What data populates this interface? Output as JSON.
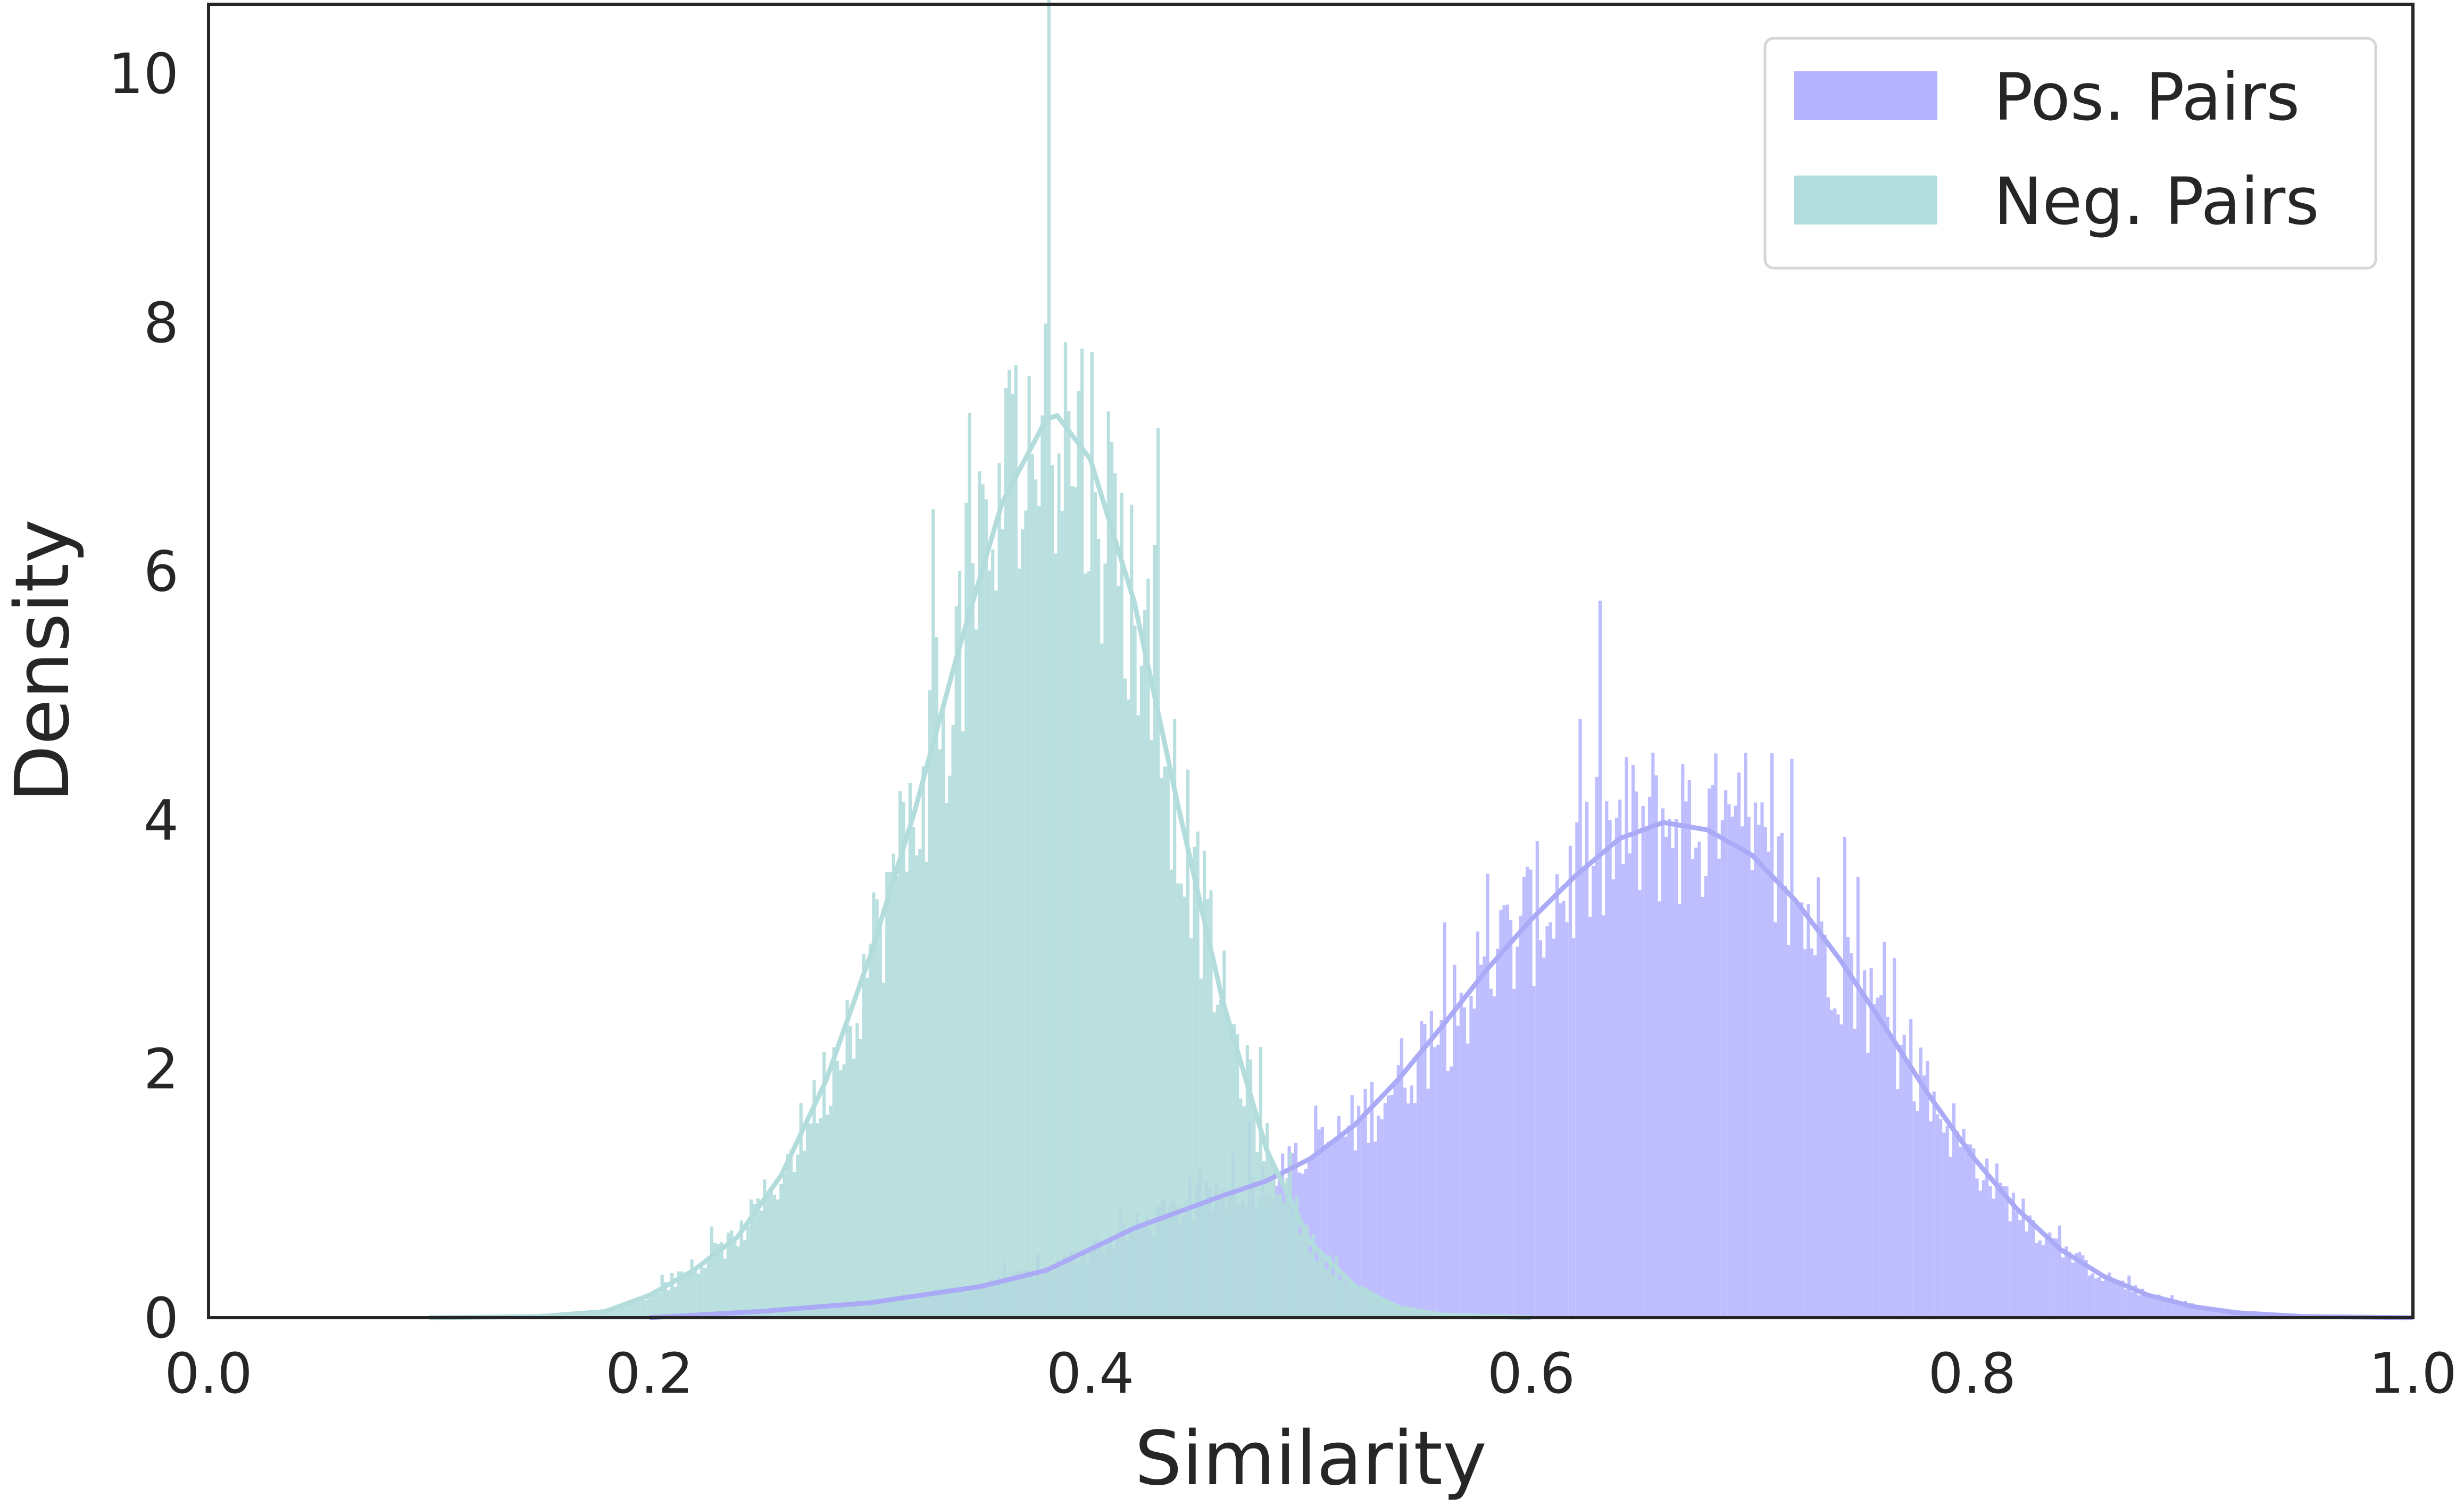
{
  "chart_data": {
    "type": "histogram",
    "title": "",
    "xlabel": "Similarity",
    "ylabel": "Density",
    "xlim": [
      0.0,
      1.0
    ],
    "ylim": [
      0,
      10.5
    ],
    "xticks": [
      "0.0",
      "0.2",
      "0.4",
      "0.6",
      "0.8",
      "1.0"
    ],
    "yticks": [
      "0",
      "2",
      "4",
      "6",
      "8",
      "10"
    ],
    "grid": false,
    "legend_position": "top-right",
    "kde": true,
    "series": [
      {
        "name": "Pos. Pairs",
        "color": "#b3b3ff",
        "line_color": "#aaaaf6",
        "kde_x": [
          0.2,
          0.25,
          0.3,
          0.35,
          0.38,
          0.4,
          0.42,
          0.44,
          0.46,
          0.48,
          0.5,
          0.52,
          0.54,
          0.56,
          0.58,
          0.6,
          0.62,
          0.64,
          0.66,
          0.68,
          0.7,
          0.72,
          0.74,
          0.76,
          0.78,
          0.8,
          0.82,
          0.84,
          0.86,
          0.88,
          0.9,
          0.92,
          0.95,
          1.0
        ],
        "kde_y": [
          0.0,
          0.05,
          0.12,
          0.25,
          0.38,
          0.55,
          0.72,
          0.85,
          0.98,
          1.1,
          1.28,
          1.55,
          1.92,
          2.35,
          2.8,
          3.2,
          3.55,
          3.85,
          3.98,
          3.92,
          3.72,
          3.35,
          2.88,
          2.35,
          1.8,
          1.3,
          0.88,
          0.55,
          0.33,
          0.18,
          0.09,
          0.04,
          0.01,
          0.0
        ]
      },
      {
        "name": "Neg. Pairs",
        "color": "#b3dcdc",
        "line_color": "#b3dcdc",
        "kde_x": [
          0.1,
          0.15,
          0.18,
          0.2,
          0.22,
          0.24,
          0.26,
          0.28,
          0.3,
          0.32,
          0.34,
          0.36,
          0.38,
          0.385,
          0.4,
          0.42,
          0.44,
          0.46,
          0.48,
          0.5,
          0.52,
          0.54,
          0.56,
          0.6
        ],
        "kde_y": [
          0.0,
          0.01,
          0.05,
          0.18,
          0.38,
          0.65,
          1.15,
          1.9,
          2.9,
          4.05,
          5.35,
          6.55,
          7.22,
          7.25,
          6.9,
          5.75,
          4.1,
          2.55,
          1.35,
          0.6,
          0.25,
          0.08,
          0.02,
          0.0
        ]
      }
    ]
  }
}
